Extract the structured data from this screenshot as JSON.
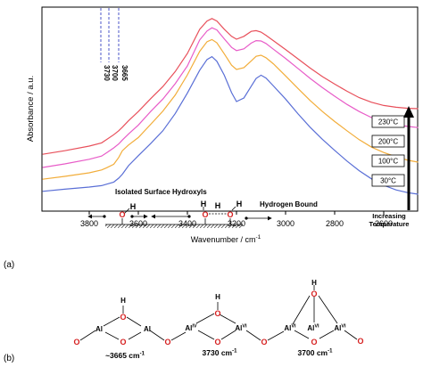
{
  "panel_a": {
    "label": "(a)",
    "xlabel": "Wavenumber / cm",
    "xlabel_sup": "-1",
    "ylabel": "Absorbance / a.u.",
    "xticks": [
      "3800",
      "3600",
      "3400",
      "3200",
      "3000",
      "2800",
      "2600"
    ],
    "peak_labels": [
      "3730",
      "3700",
      "3665"
    ],
    "isolated_label": "Isolated Surface Hydroxyls",
    "hbound_label": "Hydrogen Bound",
    "temp_arrow_label_1": "Increasing",
    "temp_arrow_label_2": "Temperature",
    "atoms": {
      "o": "O",
      "h": "H"
    }
  },
  "panel_b": {
    "label": "(b)",
    "atoms": {
      "o": "O",
      "h": "H",
      "al": "Al"
    },
    "struct1_caption": "~3665 cm",
    "struct2_caption": "3730 cm",
    "struct3_caption": "3700 cm",
    "caption_sup": "-1",
    "al_iv_sup": "IV",
    "al_vi_sup": "VI"
  },
  "chart_data": {
    "type": "line",
    "xlabel": "Wavenumber / cm-1",
    "ylabel": "Absorbance / a.u.",
    "xlim": [
      3990,
      2450
    ],
    "x_reversed": true,
    "y_axis_tick_labels": false,
    "x": [
      3990,
      3900,
      3800,
      3750,
      3730,
      3700,
      3680,
      3665,
      3640,
      3600,
      3550,
      3500,
      3450,
      3400,
      3350,
      3320,
      3300,
      3280,
      3250,
      3220,
      3200,
      3170,
      3140,
      3120,
      3100,
      3080,
      3050,
      3000,
      2950,
      2900,
      2850,
      2800,
      2750,
      2700,
      2650,
      2600,
      2550,
      2500,
      2460
    ],
    "series": [
      {
        "name": "230°C",
        "color": "#e8505b",
        "values": [
          1.42,
          1.52,
          1.65,
          1.74,
          1.83,
          1.97,
          2.08,
          2.18,
          2.36,
          2.62,
          2.98,
          3.32,
          3.74,
          4.25,
          4.93,
          5.16,
          5.23,
          5.16,
          4.93,
          4.73,
          4.65,
          4.73,
          4.87,
          4.89,
          4.85,
          4.76,
          4.61,
          4.36,
          4.1,
          3.84,
          3.6,
          3.39,
          3.19,
          3.01,
          2.88,
          2.79,
          2.74,
          2.71,
          2.7
        ]
      },
      {
        "name": "200°C",
        "color": "#e85cc8",
        "values": [
          1.05,
          1.15,
          1.28,
          1.37,
          1.46,
          1.6,
          1.71,
          1.82,
          1.99,
          2.24,
          2.62,
          2.97,
          3.4,
          3.9,
          4.63,
          4.88,
          4.97,
          4.91,
          4.66,
          4.42,
          4.33,
          4.38,
          4.54,
          4.61,
          4.6,
          4.53,
          4.37,
          4.11,
          3.83,
          3.55,
          3.29,
          3.05,
          2.82,
          2.62,
          2.45,
          2.33,
          2.25,
          2.2,
          2.17
        ]
      },
      {
        "name": "100°C",
        "color": "#f2ad3a",
        "values": [
          0.72,
          0.8,
          0.9,
          0.98,
          1.04,
          1.14,
          1.33,
          1.52,
          1.68,
          1.89,
          2.26,
          2.63,
          3.08,
          3.65,
          4.31,
          4.58,
          4.64,
          4.55,
          4.24,
          3.92,
          3.8,
          3.85,
          4.04,
          4.17,
          4.2,
          4.13,
          3.96,
          3.62,
          3.27,
          2.93,
          2.62,
          2.34,
          2.08,
          1.83,
          1.62,
          1.47,
          1.35,
          1.25,
          1.2
        ]
      },
      {
        "name": "30°C",
        "color": "#5a6fd6",
        "values": [
          0.38,
          0.44,
          0.5,
          0.54,
          0.58,
          0.64,
          0.75,
          0.86,
          1.1,
          1.38,
          1.72,
          2.08,
          2.56,
          3.14,
          3.78,
          4.08,
          4.16,
          4.03,
          3.64,
          3.15,
          2.9,
          3.0,
          3.33,
          3.55,
          3.64,
          3.56,
          3.34,
          2.97,
          2.56,
          2.18,
          1.84,
          1.53,
          1.23,
          0.96,
          0.73,
          0.55,
          0.42,
          0.34,
          0.3
        ]
      }
    ],
    "legend_boxes": [
      "230°C",
      "200°C",
      "100°C",
      "30°C"
    ],
    "annotations": [
      "3730",
      "3700",
      "3665",
      "Isolated Surface Hydroxyls",
      "Hydrogen Bound",
      "Increasing Temperature"
    ],
    "vertical_lines_x": [
      3730,
      3700,
      3665
    ]
  }
}
